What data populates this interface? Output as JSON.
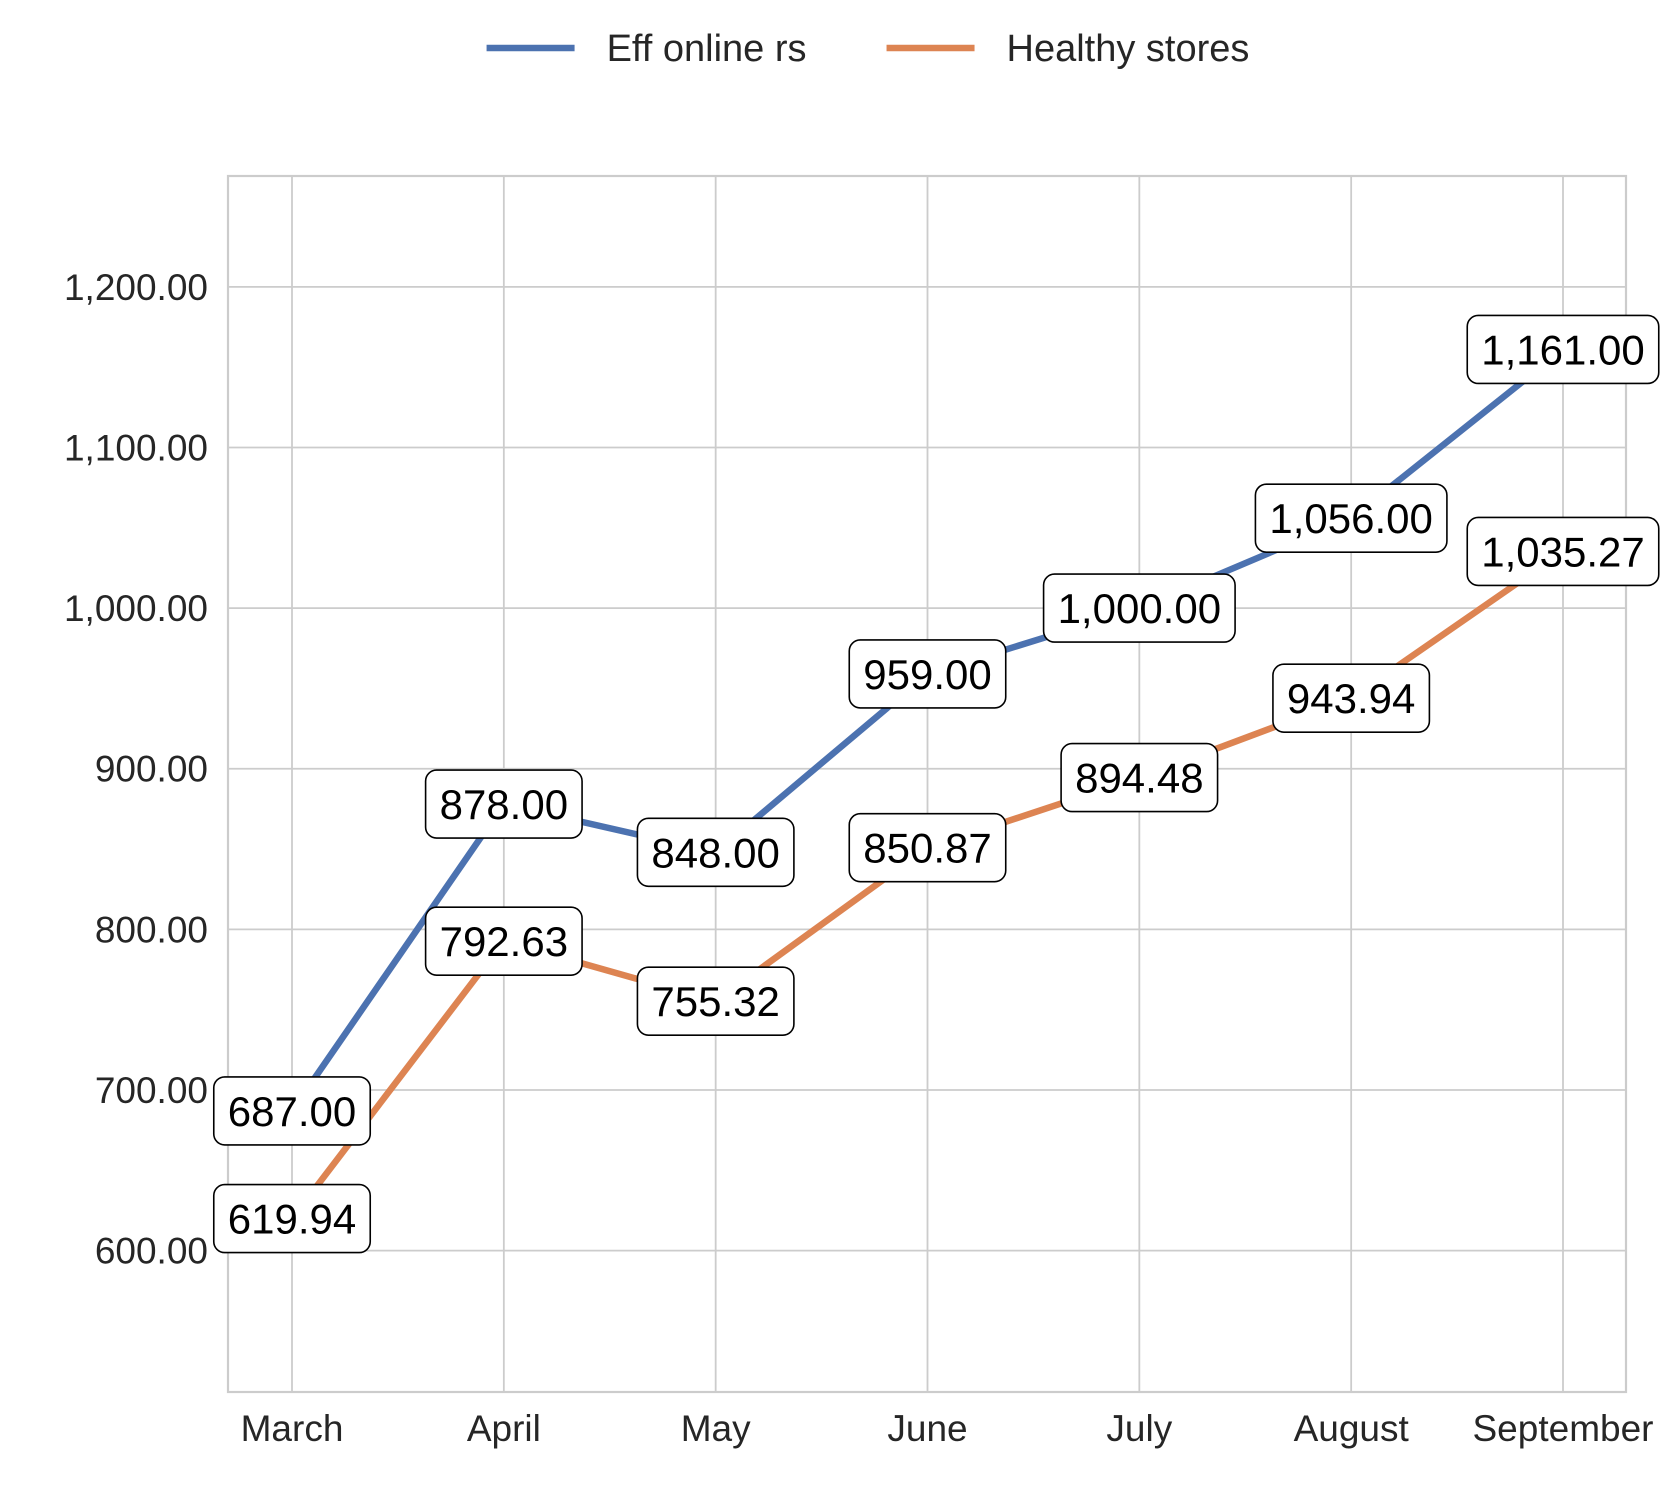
{
  "chart_data": {
    "type": "line",
    "categories": [
      "March",
      "April",
      "May",
      "June",
      "July",
      "August",
      "September"
    ],
    "series": [
      {
        "name": "Eff online rs",
        "color": "#4c72b0",
        "values": [
          687.0,
          878.0,
          848.0,
          959.0,
          1000.0,
          1056.0,
          1161.0
        ],
        "labels": [
          "687.00",
          "878.00",
          "848.00",
          "959.00",
          "1,000.00",
          "1,056.00",
          "1,161.00"
        ]
      },
      {
        "name": "Healthy stores",
        "color": "#dd8452",
        "values": [
          619.94,
          792.63,
          755.32,
          850.87,
          894.48,
          943.94,
          1035.27
        ],
        "labels": [
          "619.94",
          "792.63",
          "755.32",
          "850.87",
          "894.48",
          "943.94",
          "1,035.27"
        ]
      }
    ],
    "yticks": [
      600,
      700,
      800,
      900,
      1000,
      1100,
      1200
    ],
    "ytick_labels": [
      "600.00",
      "700.00",
      "800.00",
      "900.00",
      "1,000.00",
      "1,100.00",
      "1,200.00"
    ],
    "ylim": [
      512,
      1269
    ],
    "grid": true,
    "legend_position": "top-center",
    "title": "",
    "xlabel": "",
    "ylabel": ""
  }
}
